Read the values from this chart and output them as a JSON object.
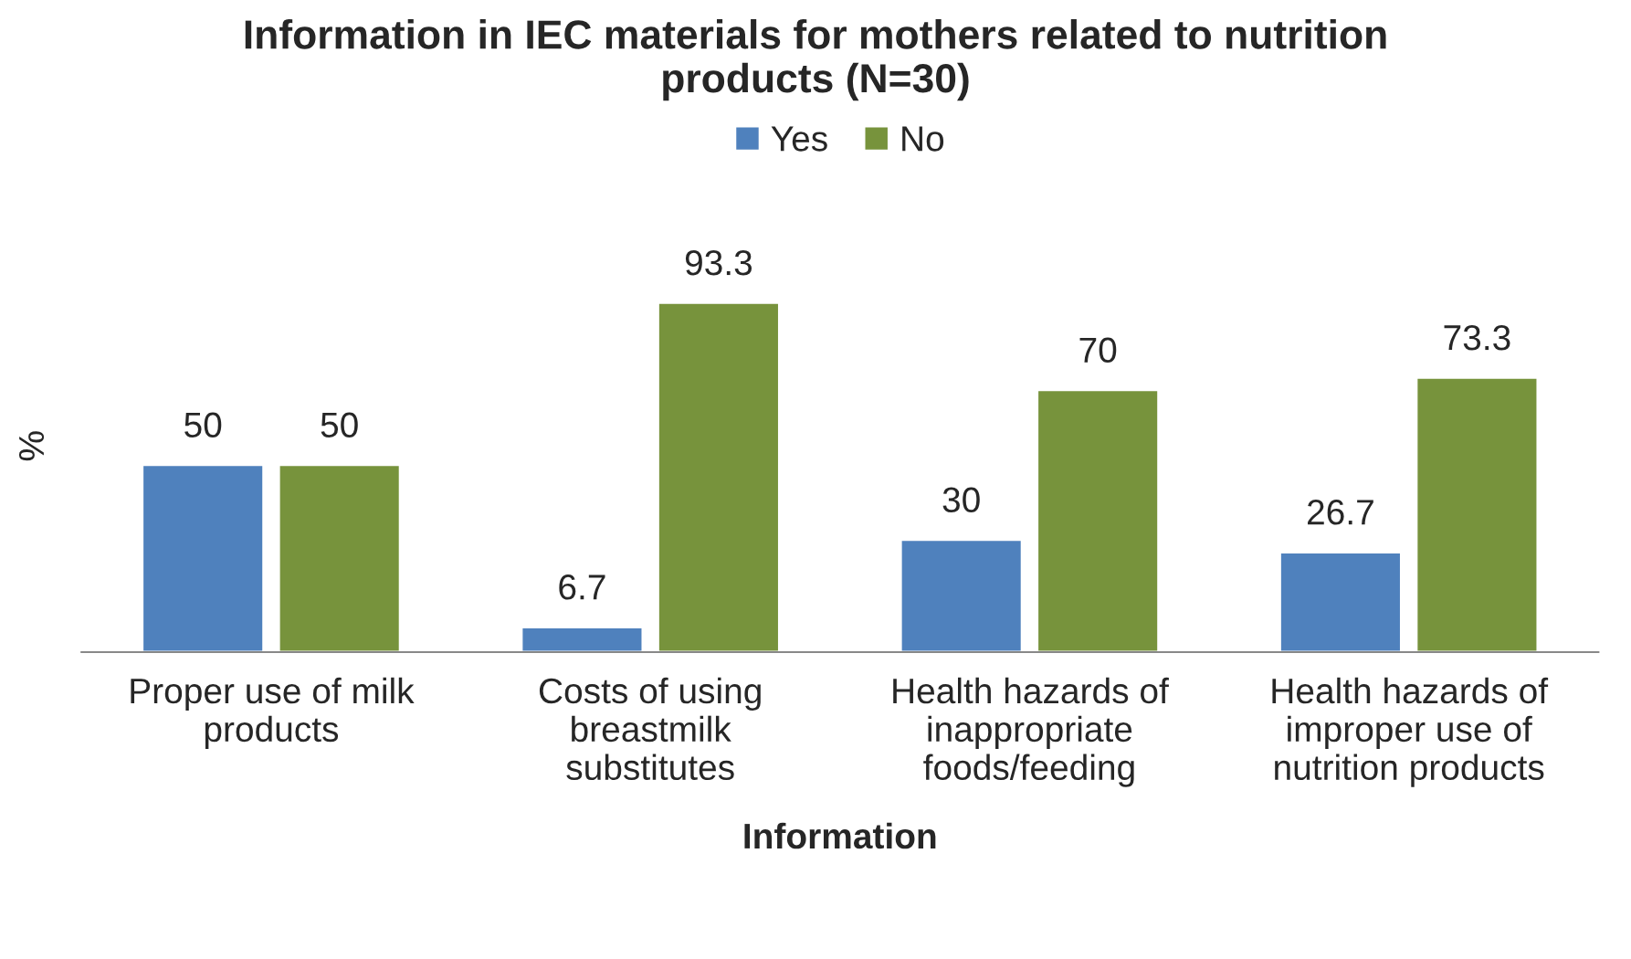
{
  "chart_data": {
    "type": "bar",
    "title": "Information in IEC materials for mothers related to nutrition products (N=30)",
    "xlabel": "Information",
    "ylabel": "%",
    "categories": [
      "Proper use of milk products",
      "Costs of using breastmilk substitutes",
      "Health hazards of inappropriate foods/feeding",
      "Health hazards of improper use of nutrition products"
    ],
    "series": [
      {
        "name": "Yes",
        "color": "#4f81bd",
        "values": [
          50,
          6.7,
          30,
          26.7
        ]
      },
      {
        "name": "No",
        "color": "#77933c",
        "values": [
          50,
          93.3,
          70,
          73.3
        ]
      }
    ],
    "data_labels": true,
    "legend": "top",
    "grid": false
  }
}
